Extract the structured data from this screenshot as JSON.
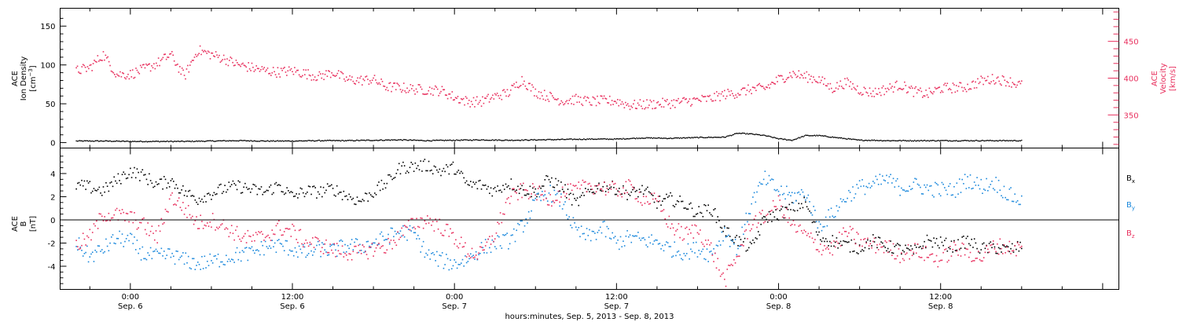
{
  "colors": {
    "black": "#000000",
    "pink": "#e8305e",
    "blue": "#1a88dc"
  },
  "chart_data": [
    {
      "type": "scatter",
      "panel": "density_velocity",
      "ylabel": "ACE\nIon Density\n[cm⁻³]",
      "ylim": [
        -7,
        173
      ],
      "yticks": [
        0,
        50,
        100,
        150
      ],
      "ylabel_right": "ACE\nVelocity\n[km/s]",
      "ylim_right": [
        305,
        495
      ],
      "yticks_right": [
        350,
        400,
        450
      ],
      "series": [
        {
          "name": "Ion Density",
          "axis": "left",
          "color": "#000000",
          "x": [
            -4,
            -2,
            0,
            2,
            4,
            6,
            8,
            10,
            12,
            14,
            16,
            18,
            20,
            22,
            24,
            26,
            28,
            30,
            32,
            34,
            36,
            38,
            40,
            42,
            44,
            45,
            46,
            47,
            48,
            49,
            50,
            51,
            52,
            53,
            54,
            55,
            56,
            57,
            58,
            60,
            62,
            64,
            66
          ],
          "values": [
            2,
            2,
            1.5,
            1.5,
            1.5,
            2,
            2.5,
            2,
            2,
            2.5,
            2.5,
            3,
            3.5,
            2.5,
            3,
            3.5,
            3,
            3.5,
            4,
            4.5,
            4.5,
            6,
            5.5,
            6.5,
            7,
            12,
            11,
            9,
            5,
            3,
            9,
            9,
            7,
            5,
            3,
            3,
            2.5,
            2.5,
            2.5,
            2.5,
            2.5,
            2.5,
            2.5
          ]
        },
        {
          "name": "Velocity",
          "axis": "right",
          "color": "#e8305e",
          "x": [
            -4,
            -3,
            -2,
            -1,
            0,
            1,
            2,
            3,
            4,
            5,
            6,
            7,
            8,
            9,
            10,
            11,
            12,
            13,
            14,
            15,
            16,
            17,
            18,
            19,
            20,
            21,
            22,
            23,
            24,
            25,
            26,
            27,
            28,
            29,
            30,
            31,
            32,
            33,
            34,
            35,
            36,
            37,
            38,
            39,
            40,
            41,
            42,
            43,
            44,
            45,
            46,
            47,
            48,
            49,
            50,
            51,
            52,
            53,
            54,
            55,
            56,
            57,
            58,
            59,
            60,
            61,
            62,
            63,
            64,
            65,
            66
          ],
          "values": [
            410,
            414,
            432,
            405,
            405,
            412,
            420,
            432,
            402,
            438,
            432,
            426,
            418,
            414,
            410,
            408,
            410,
            406,
            402,
            408,
            398,
            397,
            398,
            388,
            387,
            385,
            384,
            383,
            374,
            368,
            368,
            375,
            380,
            398,
            381,
            375,
            369,
            371,
            368,
            369,
            369,
            363,
            364,
            365,
            366,
            368,
            370,
            372,
            378,
            380,
            385,
            386,
            398,
            406,
            402,
            398,
            386,
            394,
            384,
            380,
            385,
            391,
            382,
            378,
            386,
            387,
            388,
            396,
            399,
            396,
            390
          ]
        }
      ]
    },
    {
      "type": "scatter",
      "panel": "magnetic_field",
      "ylabel": "ACE\nB\n[nT]",
      "ylim": [
        -6,
        6.2
      ],
      "yticks": [
        -4,
        -2,
        0,
        2,
        4
      ],
      "hline": 0,
      "legend": [
        "Bx",
        "By",
        "Bz"
      ],
      "legend_placement": "right",
      "series": [
        {
          "name": "Bx",
          "color": "#000000",
          "x": [
            -4,
            -3,
            -2,
            -1,
            0,
            1,
            2,
            3,
            4,
            5,
            6,
            7,
            8,
            9,
            10,
            11,
            12,
            13,
            14,
            15,
            16,
            17,
            18,
            19,
            20,
            21,
            22,
            23,
            24,
            25,
            26,
            27,
            28,
            29,
            30,
            31,
            32,
            33,
            34,
            35,
            36,
            37,
            38,
            39,
            40,
            41,
            42,
            43,
            44,
            45,
            46,
            47,
            48,
            49,
            50,
            51,
            52,
            53,
            54,
            55,
            56,
            57,
            58,
            59,
            60,
            61,
            62,
            63,
            64,
            65,
            66
          ],
          "values": [
            3.0,
            2.8,
            2.5,
            3.4,
            4.2,
            3.8,
            3.0,
            3.4,
            2.4,
            1.8,
            2.3,
            2.7,
            2.9,
            2.6,
            2.4,
            3.0,
            2.0,
            2.5,
            2.4,
            2.7,
            2.1,
            1.6,
            2.4,
            3.2,
            4.5,
            4.6,
            4.7,
            4.2,
            4.5,
            3.0,
            3.0,
            2.5,
            3.2,
            2.6,
            2.4,
            3.5,
            2.8,
            1.4,
            2.5,
            3.0,
            2.7,
            2.2,
            2.6,
            1.5,
            1.8,
            1.4,
            0.6,
            1.0,
            -0.9,
            -1.8,
            -2.5,
            0.2,
            0.5,
            1.0,
            1.5,
            -1.5,
            -1.8,
            -2.2,
            -2.4,
            -1.8,
            -2.3,
            -2.5,
            -2.8,
            -1.8,
            -2.0,
            -2.3,
            -1.8,
            -2.5,
            -2.4,
            -2.6,
            -2.3
          ]
        },
        {
          "name": "By",
          "color": "#1a88dc",
          "x": [
            -4,
            -3,
            -2,
            -1,
            0,
            1,
            2,
            3,
            4,
            5,
            6,
            7,
            8,
            9,
            10,
            11,
            12,
            13,
            14,
            15,
            16,
            17,
            18,
            19,
            20,
            21,
            22,
            23,
            24,
            25,
            26,
            27,
            28,
            29,
            30,
            31,
            32,
            33,
            34,
            35,
            36,
            37,
            38,
            39,
            40,
            41,
            42,
            43,
            44,
            45,
            46,
            47,
            48,
            49,
            50,
            51,
            52,
            53,
            54,
            55,
            56,
            57,
            58,
            59,
            60,
            61,
            62,
            63,
            64,
            65,
            66
          ],
          "values": [
            -2.0,
            -3.2,
            -2.5,
            -1.6,
            -1.8,
            -3.0,
            -3.2,
            -3.0,
            -3.5,
            -3.8,
            -3.6,
            -3.3,
            -3.0,
            -2.9,
            -2.3,
            -2.2,
            -2.5,
            -2.9,
            -2.5,
            -2.7,
            -2.2,
            -2.3,
            -2.0,
            -1.5,
            -1.0,
            -1.2,
            -3.0,
            -3.5,
            -3.8,
            -3.4,
            -2.5,
            -2.0,
            -1.8,
            -0.6,
            1.5,
            2.4,
            1.5,
            -1.0,
            -1.5,
            -0.7,
            -2.0,
            -1.5,
            -1.8,
            -1.9,
            -2.5,
            -2.8,
            -2.5,
            -3.0,
            -1.0,
            -2.5,
            1.5,
            3.5,
            2.5,
            2.0,
            2.3,
            -0.5,
            0.5,
            2.0,
            2.8,
            3.0,
            3.5,
            2.8,
            3.0,
            2.7,
            2.6,
            2.5,
            3.5,
            2.9,
            3.2,
            2.2,
            1.6
          ]
        },
        {
          "name": "Bz",
          "color": "#e8305e",
          "x": [
            -4,
            -3,
            -2,
            -1,
            0,
            1,
            2,
            3,
            4,
            5,
            6,
            7,
            8,
            9,
            10,
            11,
            12,
            13,
            14,
            15,
            16,
            17,
            18,
            19,
            20,
            21,
            22,
            23,
            24,
            25,
            26,
            27,
            28,
            29,
            30,
            31,
            32,
            33,
            34,
            35,
            36,
            37,
            38,
            39,
            40,
            41,
            42,
            43,
            44,
            45,
            46,
            47,
            48,
            49,
            50,
            51,
            52,
            53,
            54,
            55,
            56,
            57,
            58,
            59,
            60,
            61,
            62,
            63,
            64,
            65,
            66
          ],
          "values": [
            -2.2,
            -1.5,
            0.5,
            0.4,
            0.2,
            -0.5,
            -1.5,
            2.0,
            1.0,
            -0.3,
            0.0,
            -0.6,
            -1.3,
            -1.7,
            -1.4,
            -0.7,
            -1.0,
            -1.9,
            -2.1,
            -2.6,
            -2.8,
            -2.9,
            -2.5,
            -2.3,
            -1.3,
            -0.3,
            0.0,
            -0.6,
            -1.5,
            -2.8,
            -3.0,
            -1.2,
            1.8,
            2.5,
            2.4,
            1.8,
            2.3,
            2.5,
            3.0,
            2.8,
            2.5,
            2.8,
            1.8,
            1.6,
            -0.5,
            -1.3,
            -0.8,
            -2.5,
            -5.3,
            -3.0,
            -0.2,
            0.2,
            1.5,
            -0.5,
            -1.3,
            -2.3,
            -2.5,
            -1.0,
            -1.8,
            -2.2,
            -2.3,
            -3.0,
            -2.6,
            -3.0,
            -3.5,
            -2.5,
            -2.8,
            -3.3,
            -2.2,
            -2.4,
            -2.5
          ]
        }
      ]
    }
  ],
  "x_axis": {
    "unit": "hours since Sep. 5 24:00",
    "range": [
      -5.2,
      73.2
    ],
    "major_ticks": [
      {
        "x": 0,
        "time": "0:00",
        "date": "Sep. 6"
      },
      {
        "x": 12,
        "time": "12:00",
        "date": "Sep. 6"
      },
      {
        "x": 24,
        "time": "0:00",
        "date": "Sep. 7"
      },
      {
        "x": 36,
        "time": "12:00",
        "date": "Sep. 7"
      },
      {
        "x": 48,
        "time": "0:00",
        "date": "Sep. 8"
      },
      {
        "x": 60,
        "time": "12:00",
        "date": "Sep. 8"
      }
    ],
    "label": "hours:minutes, Sep.  5, 2013 - Sep.  8, 2013"
  },
  "legend_labels": {
    "bx": "Bx",
    "by": "By",
    "bz": "Bz"
  }
}
